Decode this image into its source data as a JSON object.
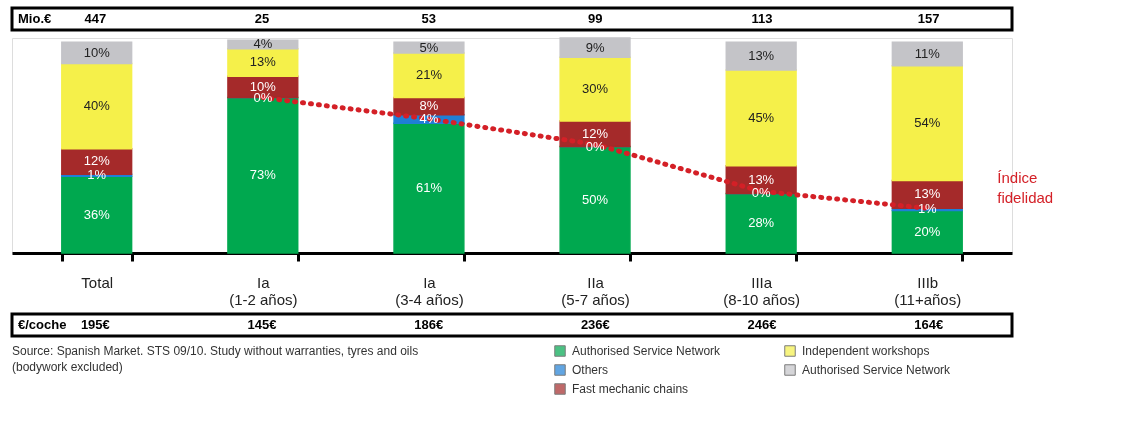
{
  "chart_data": {
    "type": "bar",
    "stacked": true,
    "categories": [
      "Total",
      "Ia\n(1-2 años)",
      "Ia\n(3-4 años)",
      "IIa\n(5-7 años)",
      "IIIa\n(8-10 años)",
      "IIIb\n(11+años)"
    ],
    "series": [
      {
        "name": "Authorised Service Network",
        "color": "#00a84f",
        "values": [
          36,
          73,
          61,
          50,
          28,
          20
        ],
        "value_labels": [
          "36%",
          "73%",
          "61%",
          "50%",
          "28%",
          "20%"
        ]
      },
      {
        "name": "Others",
        "color": "#1f7fd6",
        "values": [
          1,
          0,
          4,
          0,
          0,
          1
        ],
        "value_labels": [
          "1%",
          "0%",
          "4%",
          "0%",
          "0%",
          "1%"
        ]
      },
      {
        "name": "Fast mechanic chains",
        "color": "#a52a2a",
        "values": [
          12,
          10,
          8,
          12,
          13,
          13
        ],
        "value_labels": [
          "12%",
          "10%",
          "8%",
          "12%",
          "13%",
          "13%"
        ]
      },
      {
        "name": "Independent workshops",
        "color": "#f5f04a",
        "values": [
          40,
          13,
          21,
          30,
          45,
          54
        ],
        "value_labels": [
          "40%",
          "13%",
          "21%",
          "30%",
          "45%",
          "54%"
        ]
      },
      {
        "name": "Authorised Service Network",
        "color": "#c4c4c8",
        "values": [
          10,
          4,
          5,
          9,
          13,
          11
        ],
        "value_labels": [
          "10%",
          "4%",
          "5%",
          "9%",
          "13%",
          "11%"
        ]
      },
      {
        "name": "Índice fidelidad",
        "type": "line",
        "color": "#d42027",
        "line_style": "dotted",
        "marker": "none",
        "values": [
          null,
          73,
          63,
          51,
          29,
          21
        ]
      }
    ],
    "legend": "bottom",
    "annotations": [
      "Mio.€",
      "447",
      "25",
      "53",
      "99",
      "113",
      "157",
      "€/coche",
      "195€",
      "145€",
      "186€",
      "236€",
      "246€",
      "164€",
      "Source: Spanish Market. STS 09/10. Study without warranties, tyres and oils\n(bodywork excluded)"
    ]
  }
}
